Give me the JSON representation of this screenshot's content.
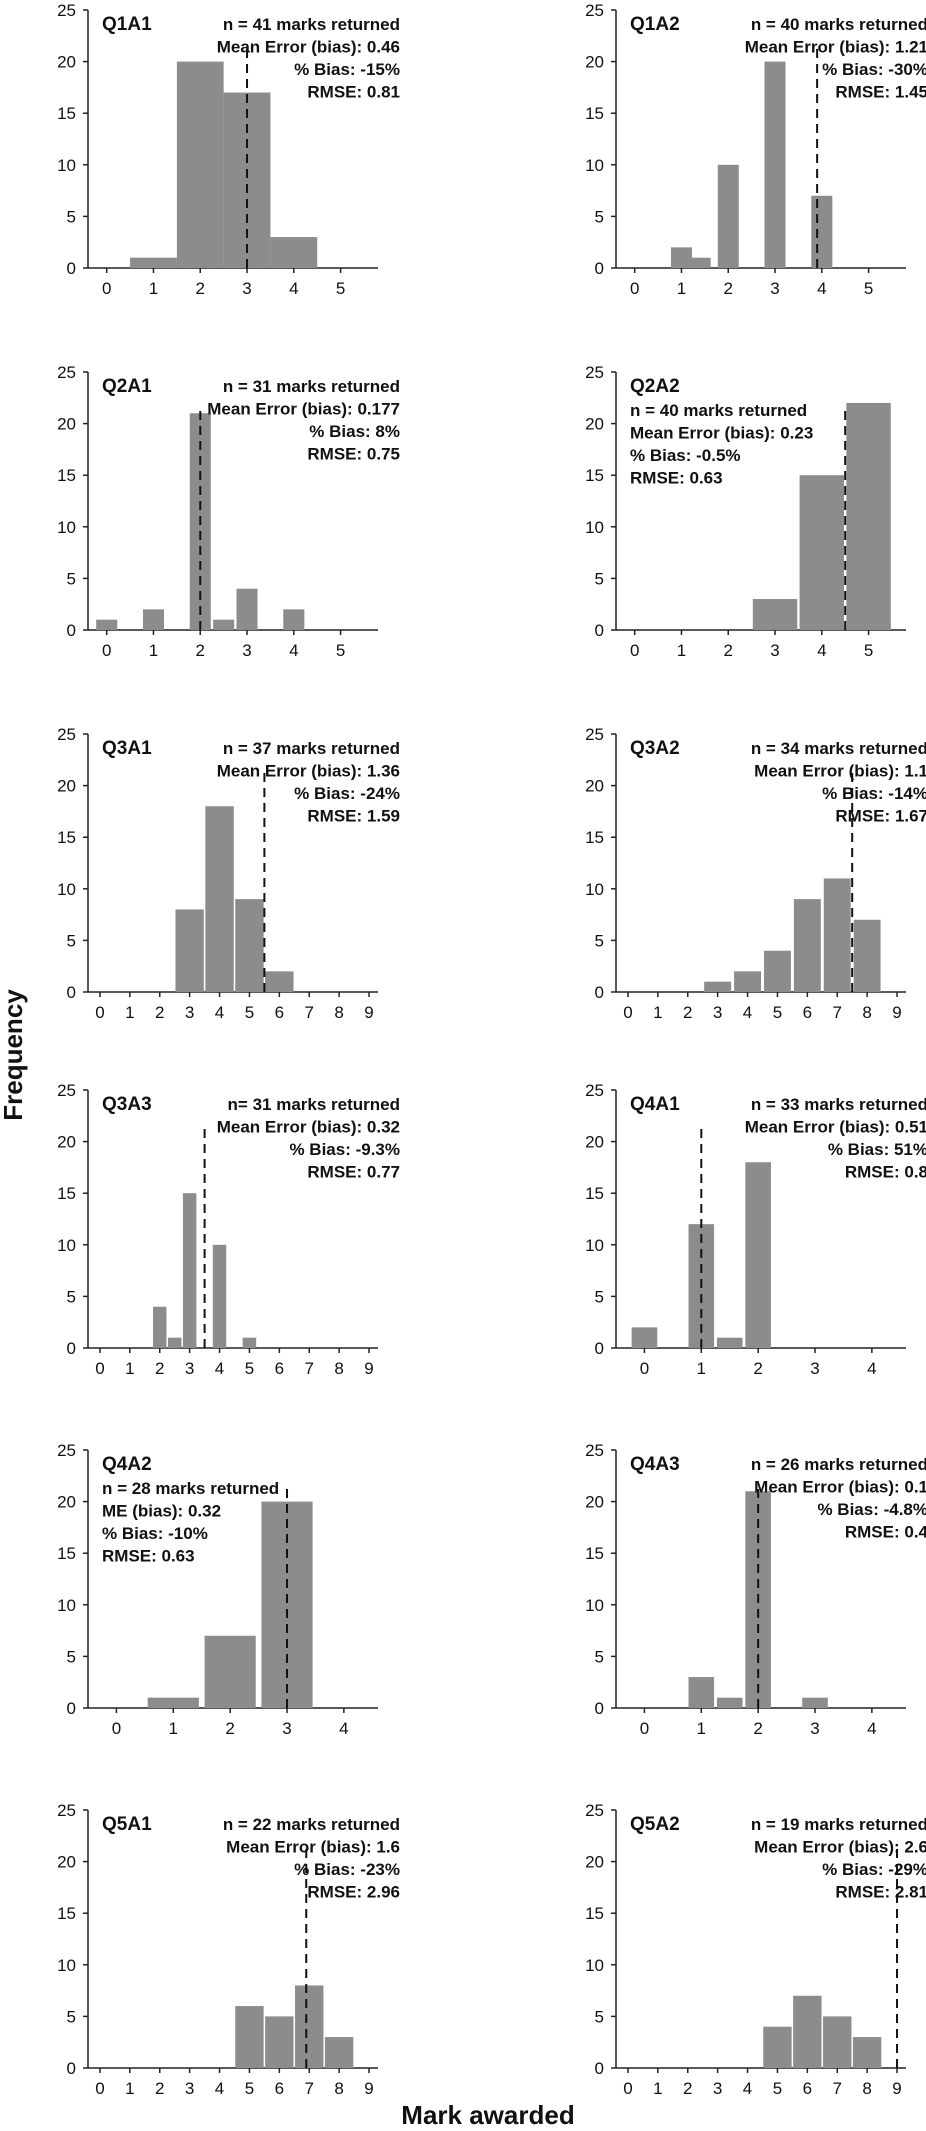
{
  "figure": {
    "ylabel": "Frequency",
    "xlabel": "Mark awarded",
    "bar_color": "#8c8c8c",
    "mean_line_color": "#111111"
  },
  "chart_data": [
    {
      "type": "bar",
      "title": "Q1A1",
      "categories": [
        "0",
        "1",
        "2",
        "3",
        "4",
        "5"
      ],
      "values": [
        0,
        1,
        20,
        17,
        3,
        0
      ],
      "bar_width": 1.0,
      "mean_marker": 3.0,
      "ylim": [
        0,
        25
      ],
      "yticks": [
        0,
        5,
        10,
        15,
        20,
        25
      ],
      "xticks": [
        0,
        1,
        2,
        3,
        4,
        5
      ],
      "xlim": [
        -0.4,
        5.8
      ],
      "stats": [
        "n = 41 marks returned",
        "Mean Error (bias): 0.46",
        "% Bias: -15%",
        "RMSE: 0.81"
      ],
      "stats_align": "right"
    },
    {
      "type": "bar",
      "title": "Q1A2",
      "categories": [
        "1",
        "1.4",
        "2",
        "3",
        "4"
      ],
      "x": [
        1,
        1.4,
        2,
        3,
        4
      ],
      "values": [
        2,
        1,
        10,
        20,
        7
      ],
      "bar_width": 0.45,
      "mean_marker": 3.9,
      "ylim": [
        0,
        25
      ],
      "yticks": [
        0,
        5,
        10,
        15,
        20,
        25
      ],
      "xticks": [
        0,
        1,
        2,
        3,
        4,
        5
      ],
      "xlim": [
        -0.4,
        5.8
      ],
      "stats": [
        "n = 40 marks returned",
        "Mean Error (bias): 1.21",
        "% Bias: -30%",
        "RMSE: 1.45"
      ],
      "stats_align": "right"
    },
    {
      "type": "bar",
      "title": "Q2A1",
      "categories": [
        "0",
        "1",
        "2",
        "2.5",
        "3",
        "4"
      ],
      "x": [
        0,
        1,
        2,
        2.5,
        3,
        4
      ],
      "values": [
        1,
        2,
        21,
        1,
        4,
        2
      ],
      "bar_width": 0.45,
      "mean_marker": 2.0,
      "ylim": [
        0,
        25
      ],
      "yticks": [
        0,
        5,
        10,
        15,
        20,
        25
      ],
      "xticks": [
        0,
        1,
        2,
        3,
        4,
        5
      ],
      "xlim": [
        -0.4,
        5.8
      ],
      "stats": [
        "n = 31 marks returned",
        "Mean Error (bias): 0.177",
        "% Bias: 8%",
        "RMSE: 0.75"
      ],
      "stats_align": "right"
    },
    {
      "type": "bar",
      "title": "Q2A2",
      "categories": [
        "3",
        "4",
        "5"
      ],
      "x": [
        3,
        4,
        5
      ],
      "values": [
        3,
        15,
        22
      ],
      "bar_width": 0.95,
      "mean_marker": 4.5,
      "ylim": [
        0,
        25
      ],
      "yticks": [
        0,
        5,
        10,
        15,
        20,
        25
      ],
      "xticks": [
        0,
        1,
        2,
        3,
        4,
        5
      ],
      "xlim": [
        -0.4,
        5.8
      ],
      "stats": [
        "n = 40 marks returned",
        "Mean Error (bias): 0.23",
        "% Bias: -0.5%",
        "RMSE: 0.63"
      ],
      "stats_align": "left"
    },
    {
      "type": "bar",
      "title": "Q3A1",
      "categories": [
        "3",
        "4",
        "5",
        "6"
      ],
      "x": [
        3,
        4,
        5,
        6
      ],
      "values": [
        8,
        18,
        9,
        2
      ],
      "bar_width": 0.95,
      "mean_marker": 5.5,
      "ylim": [
        0,
        25
      ],
      "yticks": [
        0,
        5,
        10,
        15,
        20,
        25
      ],
      "xticks": [
        0,
        1,
        2,
        3,
        4,
        5,
        6,
        7,
        8,
        9
      ],
      "xlim": [
        -0.4,
        9.3
      ],
      "stats": [
        "n = 37 marks returned",
        "Mean Error (bias): 1.36",
        "% Bias: -24%",
        "RMSE: 1.59"
      ],
      "stats_align": "right"
    },
    {
      "type": "bar",
      "title": "Q3A2",
      "categories": [
        "3",
        "4",
        "5",
        "6",
        "7",
        "8"
      ],
      "x": [
        3,
        4,
        5,
        6,
        7,
        8
      ],
      "values": [
        1,
        2,
        4,
        9,
        11,
        7
      ],
      "bar_width": 0.9,
      "mean_marker": 7.5,
      "ylim": [
        0,
        25
      ],
      "yticks": [
        0,
        5,
        10,
        15,
        20,
        25
      ],
      "xticks": [
        0,
        1,
        2,
        3,
        4,
        5,
        6,
        7,
        8,
        9
      ],
      "xlim": [
        -0.4,
        9.3
      ],
      "stats": [
        "n = 34 marks returned",
        "Mean Error (bias): 1.1",
        "% Bias: -14%",
        "RMSE: 1.67"
      ],
      "stats_align": "right"
    },
    {
      "type": "bar",
      "title": "Q3A3",
      "categories": [
        "2",
        "2.5",
        "3",
        "4",
        "5"
      ],
      "x": [
        2,
        2.5,
        3,
        4,
        5
      ],
      "values": [
        4,
        1,
        15,
        10,
        1
      ],
      "bar_width": 0.45,
      "mean_marker": 3.5,
      "ylim": [
        0,
        25
      ],
      "yticks": [
        0,
        5,
        10,
        15,
        20,
        25
      ],
      "xticks": [
        0,
        1,
        2,
        3,
        4,
        5,
        6,
        7,
        8,
        9
      ],
      "xlim": [
        -0.4,
        9.3
      ],
      "stats": [
        "n= 31 marks returned",
        "Mean Error (bias): 0.32",
        "% Bias: -9.3%",
        "RMSE: 0.77"
      ],
      "stats_align": "right"
    },
    {
      "type": "bar",
      "title": "Q4A1",
      "categories": [
        "0",
        "1",
        "1.5",
        "2"
      ],
      "x": [
        0,
        1,
        1.5,
        2
      ],
      "values": [
        2,
        12,
        1,
        18
      ],
      "bar_width": 0.45,
      "mean_marker": 1.0,
      "ylim": [
        0,
        25
      ],
      "yticks": [
        0,
        5,
        10,
        15,
        20,
        25
      ],
      "xticks": [
        0,
        1,
        2,
        3,
        4
      ],
      "xlim": [
        -0.5,
        4.6
      ],
      "stats": [
        "n = 33 marks returned",
        "Mean Error (bias): 0.51",
        "% Bias: 51%",
        "RMSE: 0.8"
      ],
      "stats_align": "right"
    },
    {
      "type": "bar",
      "title": "Q4A2",
      "categories": [
        "1",
        "2",
        "3"
      ],
      "x": [
        1,
        2,
        3
      ],
      "values": [
        1,
        7,
        20
      ],
      "bar_width": 0.9,
      "mean_marker": 3.0,
      "ylim": [
        0,
        25
      ],
      "yticks": [
        0,
        5,
        10,
        15,
        20,
        25
      ],
      "xticks": [
        0,
        1,
        2,
        3,
        4
      ],
      "xlim": [
        -0.5,
        4.6
      ],
      "stats": [
        "n = 28 marks returned",
        "ME (bias): 0.32",
        "% Bias: -10%",
        "RMSE: 0.63"
      ],
      "stats_align": "left"
    },
    {
      "type": "bar",
      "title": "Q4A3",
      "categories": [
        "1",
        "1.5",
        "2",
        "3"
      ],
      "x": [
        1,
        1.5,
        2,
        3
      ],
      "values": [
        3,
        1,
        21,
        1
      ],
      "bar_width": 0.45,
      "mean_marker": 2.0,
      "ylim": [
        0,
        25
      ],
      "yticks": [
        0,
        5,
        10,
        15,
        20,
        25
      ],
      "xticks": [
        0,
        1,
        2,
        3,
        4
      ],
      "xlim": [
        -0.5,
        4.6
      ],
      "stats": [
        "n = 26 marks returned",
        "Mean Error (bias): 0.1",
        "% Bias: -4.8%",
        "RMSE: 0.4"
      ],
      "stats_align": "right"
    },
    {
      "type": "bar",
      "title": "Q5A1",
      "categories": [
        "5",
        "6",
        "7",
        "8"
      ],
      "x": [
        5,
        6,
        7,
        8
      ],
      "values": [
        6,
        5,
        8,
        3
      ],
      "bar_width": 0.95,
      "mean_marker": 6.9,
      "ylim": [
        0,
        25
      ],
      "yticks": [
        0,
        5,
        10,
        15,
        20,
        25
      ],
      "xticks": [
        0,
        1,
        2,
        3,
        4,
        5,
        6,
        7,
        8,
        9
      ],
      "xlim": [
        -0.4,
        9.3
      ],
      "stats": [
        "n = 22 marks returned",
        "Mean Error (bias): 1.6",
        "% Bias: -23%",
        "RMSE: 2.96"
      ],
      "stats_align": "right"
    },
    {
      "type": "bar",
      "title": "Q5A2",
      "categories": [
        "5",
        "6",
        "7",
        "8"
      ],
      "x": [
        5,
        6,
        7,
        8
      ],
      "values": [
        4,
        7,
        5,
        3
      ],
      "bar_width": 0.95,
      "mean_marker": 9.0,
      "ylim": [
        0,
        25
      ],
      "yticks": [
        0,
        5,
        10,
        15,
        20,
        25
      ],
      "xticks": [
        0,
        1,
        2,
        3,
        4,
        5,
        6,
        7,
        8,
        9
      ],
      "xlim": [
        -0.4,
        9.3
      ],
      "stats": [
        "n = 19 marks returned",
        "Mean Error (bias): 2.6",
        "% Bias: -29%",
        "RMSE: 2.81"
      ],
      "stats_align": "right"
    }
  ]
}
